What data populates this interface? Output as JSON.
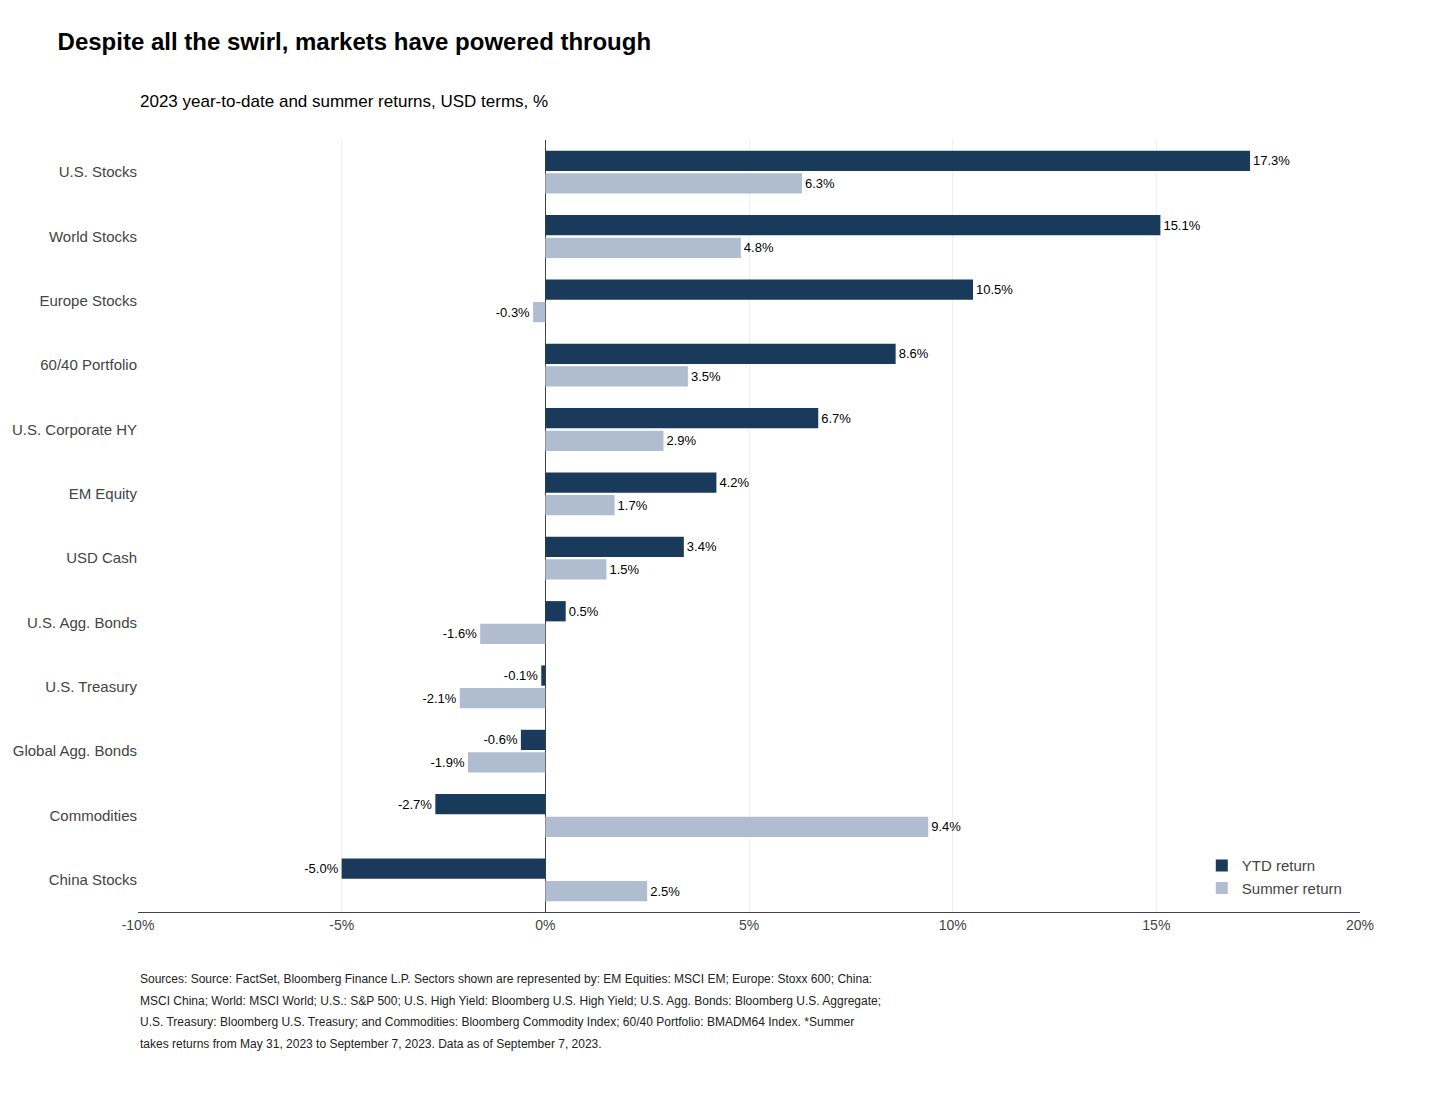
{
  "chart_data": {
    "type": "bar",
    "orientation": "horizontal",
    "title": "Despite all the swirl, markets have powered through",
    "subtitle": "2023 year-to-date and summer returns, USD terms, %",
    "categories": [
      "U.S. Stocks",
      "World Stocks",
      "Europe Stocks",
      "60/40 Portfolio",
      "U.S. Corporate HY",
      "EM Equity",
      "USD Cash",
      "U.S. Agg. Bonds",
      "U.S. Treasury",
      "Global Agg. Bonds",
      "Commodities",
      "China Stocks"
    ],
    "series": [
      {
        "name": "YTD return",
        "color": "#1a3a5c",
        "values": [
          17.3,
          15.1,
          10.5,
          8.6,
          6.7,
          4.2,
          3.4,
          0.5,
          -0.1,
          -0.6,
          -2.7,
          -5.0
        ],
        "value_labels": [
          "17.3%",
          "15.1%",
          "10.5%",
          "8.6%",
          "6.7%",
          "4.2%",
          "3.4%",
          "0.5%",
          "-0.1%",
          "-0.6%",
          "-2.7%",
          "-5.0%"
        ]
      },
      {
        "name": "Summer return",
        "color": "#b0bdd0",
        "values": [
          6.3,
          4.8,
          -0.3,
          3.5,
          2.9,
          1.7,
          1.5,
          -1.6,
          -2.1,
          -1.9,
          9.4,
          2.5
        ],
        "value_labels": [
          "6.3%",
          "4.8%",
          "-0.3%",
          "3.5%",
          "2.9%",
          "1.7%",
          "1.5%",
          "-1.6%",
          "-2.1%",
          "-1.9%",
          "9.4%",
          "2.5%"
        ]
      }
    ],
    "xlim": [
      -10,
      20
    ],
    "xticks": [
      {
        "value": -10,
        "label": "-10%"
      },
      {
        "value": -5,
        "label": "-5%"
      },
      {
        "value": 0,
        "label": "0%"
      },
      {
        "value": 5,
        "label": "5%"
      },
      {
        "value": 10,
        "label": "10%"
      },
      {
        "value": 15,
        "label": "15%"
      },
      {
        "value": 20,
        "label": "20%"
      }
    ],
    "grid": true,
    "legend": "lower right",
    "data_labels": true,
    "annotations": [
      "Sources: Source: FactSet, Bloomberg Finance L.P. Sectors shown are represented by: EM Equities: MSCI EM; Europe: Stoxx 600; China:",
      "MSCI China; World: MSCI World; U.S.: S&P 500; U.S. High Yield: Bloomberg U.S. High Yield; U.S. Agg. Bonds: Bloomberg U.S. Aggregate;",
      "U.S. Treasury: Bloomberg U.S. Treasury; and Commodities: Bloomberg Commodity Index; 60/40 Portfolio: BMADM64 Index. *Summer",
      "takes returns from May 31, 2023 to September 7, 2023. Data as of September 7, 2023."
    ]
  }
}
